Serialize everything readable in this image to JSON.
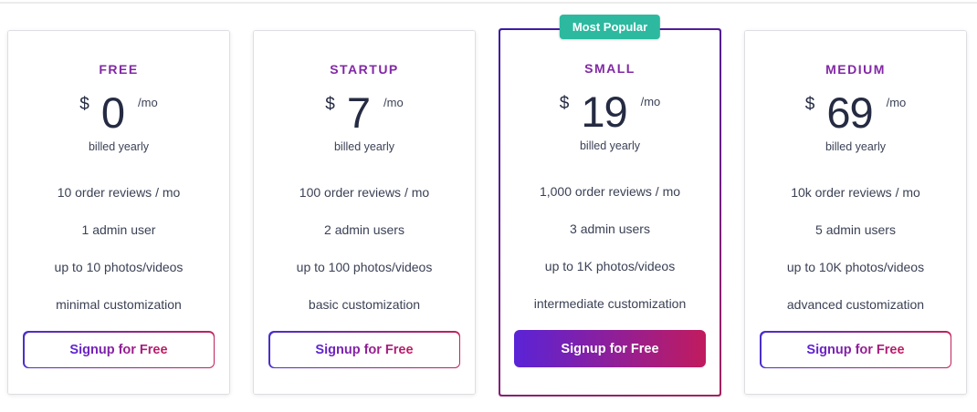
{
  "badge": {
    "label": "Most Popular",
    "color": "#2cb9a0"
  },
  "colors": {
    "plan_name": "#8228a5",
    "price_text": "#252b42",
    "feature_text": "#3b4155",
    "badge_teal": "#2cb9a0",
    "gradient_start": "#5a23d7",
    "gradient_end": "#c11b5e",
    "highlight_border_start": "#3b1ba5",
    "highlight_border_end": "#a6215f",
    "card_border": "#dfdfe3"
  },
  "plans": [
    {
      "name": "FREE",
      "currency": "$",
      "price": "0",
      "period": "/mo",
      "billing": "billed yearly",
      "features": [
        "10 order reviews / mo",
        "1 admin user",
        "up to 10 photos/videos",
        "minimal customization"
      ],
      "cta": "Signup for Free",
      "highlighted": false
    },
    {
      "name": "STARTUP",
      "currency": "$",
      "price": "7",
      "period": "/mo",
      "billing": "billed yearly",
      "features": [
        "100 order reviews / mo",
        "2 admin users",
        "up to 100 photos/videos",
        "basic customization"
      ],
      "cta": "Signup for Free",
      "highlighted": false
    },
    {
      "name": "SMALL",
      "currency": "$",
      "price": "19",
      "period": "/mo",
      "billing": "billed yearly",
      "features": [
        "1,000 order reviews / mo",
        "3 admin users",
        "up to 1K photos/videos",
        "intermediate customization"
      ],
      "cta": "Signup for Free",
      "highlighted": true
    },
    {
      "name": "MEDIUM",
      "currency": "$",
      "price": "69",
      "period": "/mo",
      "billing": "billed yearly",
      "features": [
        "10k order reviews / mo",
        "5 admin users",
        "up to 10K photos/videos",
        "advanced customization"
      ],
      "cta": "Signup for Free",
      "highlighted": false
    }
  ]
}
